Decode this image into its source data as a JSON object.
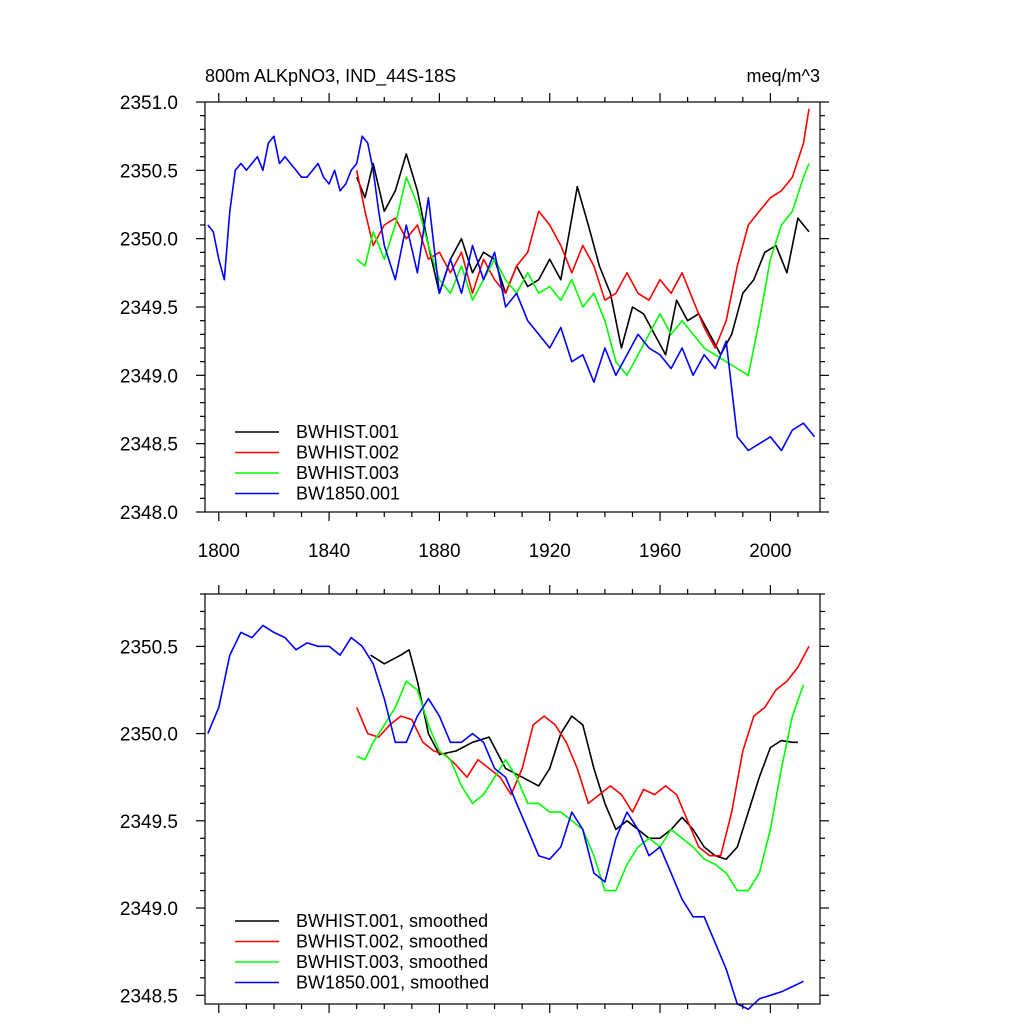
{
  "chart_data": [
    {
      "type": "line",
      "title_left": "800m ALKpNO3, IND_44S-18S",
      "title_right": "meq/m^3",
      "xlabel": "",
      "ylabel": "",
      "xlim": [
        1795,
        2018
      ],
      "ylim": [
        2348.0,
        2351.0
      ],
      "xticks": [
        1800,
        1840,
        1880,
        1920,
        1960,
        2000
      ],
      "yticks": [
        2348.0,
        2348.5,
        2349.0,
        2349.5,
        2350.0,
        2350.5,
        2351.0
      ],
      "ytick_labels": [
        "2348.0",
        "2348.5",
        "2349.0",
        "2349.5",
        "2350.0",
        "2350.5",
        "2351.0"
      ],
      "legend": [
        "BWHIST.001",
        "BWHIST.002",
        "BWHIST.003",
        "BW1850.001"
      ],
      "series": [
        {
          "name": "BWHIST.001",
          "color": "#000000",
          "x": [
            1850,
            1853,
            1856,
            1860,
            1864,
            1868,
            1872,
            1876,
            1880,
            1884,
            1888,
            1892,
            1896,
            1900,
            1904,
            1908,
            1912,
            1916,
            1920,
            1924,
            1928,
            1930,
            1934,
            1938,
            1942,
            1946,
            1950,
            1954,
            1958,
            1962,
            1966,
            1970,
            1974,
            1978,
            1982,
            1986,
            1990,
            1994,
            1998,
            2002,
            2006,
            2010,
            2014
          ],
          "y": [
            2350.45,
            2350.3,
            2350.55,
            2350.2,
            2350.35,
            2350.62,
            2350.35,
            2349.95,
            2349.6,
            2349.85,
            2350.0,
            2349.75,
            2349.9,
            2349.85,
            2349.6,
            2349.8,
            2349.65,
            2349.7,
            2349.85,
            2349.7,
            2350.15,
            2350.38,
            2350.1,
            2349.8,
            2349.6,
            2349.2,
            2349.5,
            2349.45,
            2349.3,
            2349.15,
            2349.55,
            2349.4,
            2349.45,
            2349.3,
            2349.15,
            2349.3,
            2349.6,
            2349.7,
            2349.9,
            2349.95,
            2349.75,
            2350.15,
            2350.05
          ]
        },
        {
          "name": "BWHIST.002",
          "color": "#ff0000",
          "x": [
            1850,
            1853,
            1856,
            1860,
            1864,
            1868,
            1872,
            1876,
            1880,
            1884,
            1888,
            1892,
            1896,
            1900,
            1904,
            1908,
            1912,
            1916,
            1920,
            1924,
            1928,
            1932,
            1936,
            1940,
            1944,
            1948,
            1952,
            1956,
            1960,
            1964,
            1968,
            1972,
            1976,
            1980,
            1984,
            1988,
            1992,
            1996,
            2000,
            2004,
            2008,
            2012,
            2014
          ],
          "y": [
            2350.5,
            2350.2,
            2349.95,
            2350.1,
            2350.15,
            2350.0,
            2350.1,
            2349.85,
            2349.9,
            2349.75,
            2349.9,
            2349.6,
            2349.85,
            2349.7,
            2349.6,
            2349.8,
            2349.9,
            2350.2,
            2350.1,
            2349.95,
            2349.75,
            2349.95,
            2349.8,
            2349.55,
            2349.6,
            2349.75,
            2349.6,
            2349.55,
            2349.7,
            2349.6,
            2349.75,
            2349.55,
            2349.35,
            2349.2,
            2349.4,
            2349.8,
            2350.1,
            2350.2,
            2350.3,
            2350.35,
            2350.45,
            2350.7,
            2350.95
          ]
        },
        {
          "name": "BWHIST.003",
          "color": "#00ff00",
          "x": [
            1850,
            1853,
            1856,
            1860,
            1864,
            1868,
            1872,
            1876,
            1880,
            1884,
            1888,
            1892,
            1896,
            1900,
            1904,
            1908,
            1912,
            1916,
            1920,
            1924,
            1928,
            1932,
            1936,
            1940,
            1944,
            1948,
            1952,
            1956,
            1960,
            1964,
            1968,
            1972,
            1976,
            1980,
            1984,
            1988,
            1992,
            1996,
            2000,
            2004,
            2008,
            2012,
            2014
          ],
          "y": [
            2349.85,
            2349.8,
            2350.05,
            2349.85,
            2350.1,
            2350.45,
            2350.25,
            2349.95,
            2349.7,
            2349.6,
            2349.8,
            2349.55,
            2349.7,
            2349.85,
            2349.7,
            2349.6,
            2349.75,
            2349.6,
            2349.65,
            2349.55,
            2349.7,
            2349.5,
            2349.6,
            2349.4,
            2349.1,
            2349.0,
            2349.15,
            2349.3,
            2349.45,
            2349.3,
            2349.4,
            2349.3,
            2349.2,
            2349.15,
            2349.1,
            2349.05,
            2349.0,
            2349.4,
            2349.85,
            2350.1,
            2350.2,
            2350.45,
            2350.55
          ]
        },
        {
          "name": "BW1850.001",
          "color": "#0000ff",
          "x": [
            1796,
            1798,
            1800,
            1802,
            1804,
            1806,
            1808,
            1810,
            1812,
            1814,
            1816,
            1818,
            1820,
            1822,
            1824,
            1826,
            1828,
            1830,
            1832,
            1834,
            1836,
            1838,
            1840,
            1842,
            1844,
            1846,
            1848,
            1850,
            1852,
            1854,
            1856,
            1858,
            1860,
            1864,
            1868,
            1872,
            1876,
            1880,
            1884,
            1888,
            1892,
            1896,
            1900,
            1904,
            1908,
            1912,
            1916,
            1920,
            1924,
            1928,
            1932,
            1936,
            1940,
            1944,
            1948,
            1952,
            1956,
            1960,
            1964,
            1968,
            1972,
            1976,
            1980,
            1984,
            1988,
            1992,
            1996,
            2000,
            2004,
            2008,
            2012,
            2016
          ],
          "y": [
            2350.1,
            2350.05,
            2349.85,
            2349.7,
            2350.2,
            2350.5,
            2350.55,
            2350.5,
            2350.55,
            2350.6,
            2350.5,
            2350.7,
            2350.75,
            2350.55,
            2350.6,
            2350.55,
            2350.5,
            2350.45,
            2350.45,
            2350.5,
            2350.55,
            2350.45,
            2350.4,
            2350.5,
            2350.35,
            2350.4,
            2350.5,
            2350.55,
            2350.75,
            2350.7,
            2350.5,
            2350.2,
            2349.95,
            2349.7,
            2350.1,
            2349.75,
            2350.3,
            2349.6,
            2349.85,
            2349.6,
            2349.95,
            2349.7,
            2349.9,
            2349.5,
            2349.6,
            2349.4,
            2349.3,
            2349.2,
            2349.35,
            2349.1,
            2349.15,
            2348.95,
            2349.2,
            2349.0,
            2349.15,
            2349.3,
            2349.2,
            2349.15,
            2349.05,
            2349.2,
            2349.0,
            2349.15,
            2349.05,
            2349.25,
            2348.55,
            2348.45,
            2348.5,
            2348.55,
            2348.45,
            2348.6,
            2348.65,
            2348.55
          ]
        }
      ]
    },
    {
      "type": "line",
      "title_left": "",
      "title_right": "",
      "xlabel": "",
      "ylabel": "",
      "xlim": [
        1795,
        2018
      ],
      "ylim": [
        2348.45,
        2350.8
      ],
      "xticks": [
        1800,
        1840,
        1880,
        1920,
        1960,
        2000
      ],
      "yticks": [
        2348.5,
        2349.0,
        2349.5,
        2350.0,
        2350.5
      ],
      "ytick_labels": [
        "2348.5",
        "2349.0",
        "2349.5",
        "2350.0",
        "2350.5"
      ],
      "legend": [
        "BWHIST.001, smoothed",
        "BWHIST.002, smoothed",
        "BWHIST.003, smoothed",
        "BW1850.001, smoothed"
      ],
      "series": [
        {
          "name": "BWHIST.001, smoothed",
          "color": "#000000",
          "x": [
            1855,
            1860,
            1866,
            1869,
            1872,
            1876,
            1880,
            1886,
            1892,
            1898,
            1904,
            1910,
            1916,
            1920,
            1924,
            1928,
            1932,
            1936,
            1940,
            1944,
            1948,
            1952,
            1956,
            1960,
            1964,
            1968,
            1972,
            1976,
            1980,
            1984,
            1988,
            1992,
            1996,
            2000,
            2004,
            2008,
            2010
          ],
          "y": [
            2350.45,
            2350.4,
            2350.45,
            2350.48,
            2350.3,
            2350.0,
            2349.88,
            2349.9,
            2349.95,
            2349.98,
            2349.8,
            2349.75,
            2349.7,
            2349.8,
            2350.0,
            2350.1,
            2350.05,
            2349.8,
            2349.6,
            2349.45,
            2349.5,
            2349.45,
            2349.4,
            2349.4,
            2349.45,
            2349.52,
            2349.45,
            2349.35,
            2349.3,
            2349.28,
            2349.35,
            2349.55,
            2349.75,
            2349.92,
            2349.96,
            2349.95,
            2349.95
          ]
        },
        {
          "name": "BWHIST.002, smoothed",
          "color": "#ff0000",
          "x": [
            1850,
            1854,
            1858,
            1862,
            1866,
            1870,
            1874,
            1878,
            1882,
            1886,
            1890,
            1894,
            1898,
            1902,
            1906,
            1910,
            1914,
            1918,
            1922,
            1926,
            1930,
            1934,
            1938,
            1942,
            1946,
            1950,
            1954,
            1958,
            1962,
            1966,
            1970,
            1974,
            1978,
            1982,
            1986,
            1990,
            1994,
            1998,
            2002,
            2006,
            2010,
            2014
          ],
          "y": [
            2350.15,
            2350.0,
            2349.98,
            2350.05,
            2350.1,
            2350.08,
            2349.95,
            2349.9,
            2349.88,
            2349.82,
            2349.75,
            2349.85,
            2349.8,
            2349.75,
            2349.65,
            2349.8,
            2350.05,
            2350.1,
            2350.05,
            2349.95,
            2349.8,
            2349.6,
            2349.65,
            2349.7,
            2349.65,
            2349.55,
            2349.68,
            2349.65,
            2349.7,
            2349.65,
            2349.5,
            2349.35,
            2349.3,
            2349.3,
            2349.55,
            2349.9,
            2350.1,
            2350.15,
            2350.25,
            2350.3,
            2350.38,
            2350.5
          ]
        },
        {
          "name": "BWHIST.003, smoothed",
          "color": "#00ff00",
          "x": [
            1850,
            1853,
            1856,
            1860,
            1864,
            1868,
            1872,
            1876,
            1880,
            1884,
            1888,
            1892,
            1896,
            1900,
            1904,
            1908,
            1912,
            1916,
            1920,
            1924,
            1928,
            1932,
            1936,
            1940,
            1944,
            1948,
            1952,
            1956,
            1960,
            1964,
            1968,
            1972,
            1976,
            1980,
            1984,
            1988,
            1992,
            1996,
            2000,
            2004,
            2008,
            2012
          ],
          "y": [
            2349.87,
            2349.85,
            2349.95,
            2350.05,
            2350.15,
            2350.3,
            2350.25,
            2350.05,
            2349.9,
            2349.85,
            2349.7,
            2349.6,
            2349.65,
            2349.75,
            2349.85,
            2349.75,
            2349.6,
            2349.6,
            2349.55,
            2349.55,
            2349.5,
            2349.45,
            2349.3,
            2349.1,
            2349.1,
            2349.25,
            2349.35,
            2349.4,
            2349.35,
            2349.45,
            2349.4,
            2349.35,
            2349.28,
            2349.25,
            2349.2,
            2349.1,
            2349.1,
            2349.2,
            2349.45,
            2349.8,
            2350.1,
            2350.28
          ]
        },
        {
          "name": "BW1850.001, smoothed",
          "color": "#0000ff",
          "x": [
            1796,
            1800,
            1804,
            1808,
            1812,
            1816,
            1820,
            1824,
            1828,
            1832,
            1836,
            1840,
            1844,
            1848,
            1852,
            1856,
            1860,
            1864,
            1868,
            1872,
            1876,
            1880,
            1884,
            1888,
            1892,
            1896,
            1900,
            1904,
            1908,
            1912,
            1916,
            1920,
            1924,
            1928,
            1932,
            1936,
            1940,
            1944,
            1948,
            1952,
            1956,
            1960,
            1964,
            1968,
            1972,
            1976,
            1980,
            1984,
            1988,
            1992,
            1996,
            2000,
            2004,
            2008,
            2012
          ],
          "y": [
            2350.0,
            2350.15,
            2350.45,
            2350.58,
            2350.55,
            2350.62,
            2350.58,
            2350.55,
            2350.48,
            2350.52,
            2350.5,
            2350.5,
            2350.45,
            2350.55,
            2350.5,
            2350.4,
            2350.2,
            2349.95,
            2349.95,
            2350.1,
            2350.2,
            2350.1,
            2349.95,
            2349.95,
            2350.0,
            2349.95,
            2349.8,
            2349.75,
            2349.6,
            2349.45,
            2349.3,
            2349.28,
            2349.35,
            2349.55,
            2349.45,
            2349.2,
            2349.15,
            2349.4,
            2349.55,
            2349.45,
            2349.3,
            2349.35,
            2349.2,
            2349.05,
            2348.95,
            2348.95,
            2348.8,
            2348.65,
            2348.45,
            2348.42,
            2348.48,
            2348.5,
            2348.52,
            2348.55,
            2348.58
          ]
        }
      ]
    }
  ]
}
